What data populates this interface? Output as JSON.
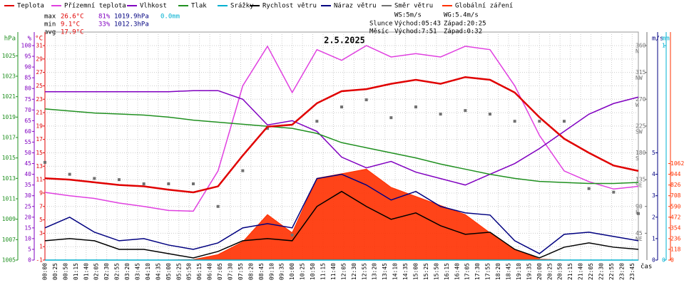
{
  "chart_data": {
    "type": "line",
    "title": "2.5.2025",
    "legend": [
      "Teplota",
      "Přízemní teplota",
      "Vlhkost",
      "Tlak",
      "Srážky",
      "Rychlost větru",
      "Náraz větru",
      "Směr větru",
      "Globální záření"
    ],
    "stats": [
      [
        "max",
        "26.6°C",
        "81%",
        "1019.9hPa",
        "0.0mm"
      ],
      [
        "min",
        "9.1°C",
        "33%",
        "1012.3hPa"
      ],
      [
        "avg",
        "17.9°C"
      ]
    ],
    "wind": [
      "WS:5m/s",
      "WG:5.4m/s"
    ],
    "sun": [
      "Slunce",
      "Východ:05:43",
      "Západ:20:25"
    ],
    "moon": [
      "Měsíc",
      "Východ:7:51",
      "Západ:0:32"
    ],
    "xlabel": "čas",
    "xlim": [
      0,
      1440
    ],
    "xticks": [
      {
        "value": 0,
        "label": "00:00"
      },
      {
        "value": 25,
        "label": "00:25"
      },
      {
        "value": 50,
        "label": "00:50"
      },
      {
        "value": 75,
        "label": "01:15"
      },
      {
        "value": 100,
        "label": "01:40"
      },
      {
        "value": 125,
        "label": "02:05"
      },
      {
        "value": 150,
        "label": "02:30"
      },
      {
        "value": 175,
        "label": "02:55"
      },
      {
        "value": 200,
        "label": "03:20"
      },
      {
        "value": 225,
        "label": "03:45"
      },
      {
        "value": 250,
        "label": "04:10"
      },
      {
        "value": 275,
        "label": "04:35"
      },
      {
        "value": 300,
        "label": "05:00"
      },
      {
        "value": 325,
        "label": "05:25"
      },
      {
        "value": 350,
        "label": "05:50"
      },
      {
        "value": 375,
        "label": "06:15"
      },
      {
        "value": 400,
        "label": "06:40"
      },
      {
        "value": 425,
        "label": "07:05"
      },
      {
        "value": 450,
        "label": "07:30"
      },
      {
        "value": 475,
        "label": "07:55"
      },
      {
        "value": 500,
        "label": "08:20"
      },
      {
        "value": 525,
        "label": "08:45"
      },
      {
        "value": 550,
        "label": "09:10"
      },
      {
        "value": 575,
        "label": "09:35"
      },
      {
        "value": 600,
        "label": "10:00"
      },
      {
        "value": 625,
        "label": "10:25"
      },
      {
        "value": 650,
        "label": "10:50"
      },
      {
        "value": 675,
        "label": "11:15"
      },
      {
        "value": 700,
        "label": "11:40"
      },
      {
        "value": 725,
        "label": "12:05"
      },
      {
        "value": 750,
        "label": "12:30"
      },
      {
        "value": 775,
        "label": "12:55"
      },
      {
        "value": 800,
        "label": "13:20"
      },
      {
        "value": 825,
        "label": "13:45"
      },
      {
        "value": 850,
        "label": "14:10"
      },
      {
        "value": 875,
        "label": "14:35"
      },
      {
        "value": 900,
        "label": "15:00"
      },
      {
        "value": 925,
        "label": "15:25"
      },
      {
        "value": 950,
        "label": "15:50"
      },
      {
        "value": 975,
        "label": "16:15"
      },
      {
        "value": 1000,
        "label": "16:40"
      },
      {
        "value": 1025,
        "label": "17:05"
      },
      {
        "value": 1050,
        "label": "17:30"
      },
      {
        "value": 1075,
        "label": "17:55"
      },
      {
        "value": 1100,
        "label": "18:20"
      },
      {
        "value": 1125,
        "label": "18:45"
      },
      {
        "value": 1150,
        "label": "19:10"
      },
      {
        "value": 1175,
        "label": "19:35"
      },
      {
        "value": 1200,
        "label": "20:00"
      },
      {
        "value": 1225,
        "label": "20:25"
      },
      {
        "value": 1250,
        "label": "20:50"
      },
      {
        "value": 1275,
        "label": "21:15"
      },
      {
        "value": 1300,
        "label": "21:40"
      },
      {
        "value": 1325,
        "label": "22:05"
      },
      {
        "value": 1350,
        "label": "22:30"
      },
      {
        "value": 1375,
        "label": "22:55"
      },
      {
        "value": 1400,
        "label": "23:20"
      },
      {
        "value": 1425,
        "label": "23:45"
      }
    ],
    "axes": [
      {
        "unit": "hPa",
        "color": "#209020",
        "ylim": [
          1005,
          1026
        ],
        "yticks": [
          1005,
          1007,
          1009,
          1011,
          1013,
          1015,
          1017,
          1019,
          1021,
          1023,
          1025
        ]
      },
      {
        "unit": "%",
        "color": "#8000c0",
        "ylim": [
          0,
          100
        ],
        "yticks": [
          0,
          5,
          10,
          15,
          20,
          25,
          30,
          35,
          40,
          45,
          50,
          55,
          60,
          65,
          70,
          75,
          80,
          85,
          90,
          95,
          100
        ]
      },
      {
        "unit": "°C",
        "color": "#e00000",
        "ylim": [
          -1,
          31
        ],
        "yticks": [
          -1,
          1,
          3,
          5,
          7,
          9,
          11,
          13,
          15,
          17,
          19,
          21,
          23,
          25,
          27,
          29,
          31
        ],
        "grid": true
      },
      {
        "color": "#707070",
        "ylim": [
          0,
          360
        ],
        "yticks": [
          45,
          90,
          135,
          180,
          225,
          270,
          315,
          360
        ],
        "compass": [
          "NE",
          "E",
          "SE",
          "S",
          "SW",
          "W",
          "NW",
          "N"
        ]
      },
      {
        "unit": "m/s",
        "color": "#000080",
        "ylim": [
          0,
          10
        ],
        "yticks": [
          0,
          1,
          2,
          3,
          4,
          5
        ]
      },
      {
        "unit": "mm",
        "color": "#00b0d0",
        "ylim": [
          0,
          1
        ],
        "yticks": [
          0,
          1
        ]
      },
      {
        "color": "#ff3000",
        "ylim": [
          0,
          2360
        ],
        "yticks": [
          0,
          118,
          236,
          354,
          472,
          590,
          708,
          826,
          944,
          1062
        ]
      }
    ],
    "x": [
      0,
      60,
      120,
      180,
      240,
      300,
      360,
      420,
      480,
      540,
      600,
      660,
      720,
      780,
      840,
      900,
      960,
      1020,
      1080,
      1140,
      1200,
      1260,
      1320,
      1380,
      1440
    ],
    "series": [
      {
        "name": "Globální záření",
        "color": "#ff3000",
        "axis": 6,
        "kind": "area",
        "values": [
          0,
          0,
          0,
          0,
          0,
          0,
          5,
          60,
          200,
          500,
          300,
          900,
          950,
          1000,
          800,
          700,
          600,
          500,
          300,
          120,
          10,
          0,
          0,
          0,
          0
        ]
      },
      {
        "name": "Přízemní teplota",
        "color": "#e040e0",
        "axis": 2,
        "values": [
          9.1,
          8.6,
          8.2,
          7.5,
          7.0,
          6.4,
          6.3,
          12.3,
          25.0,
          30.9,
          24.0,
          30.4,
          28.8,
          31.0,
          29.3,
          29.8,
          29.3,
          30.9,
          30.4,
          25.0,
          17.6,
          12.3,
          10.7,
          9.6,
          10.0
        ]
      },
      {
        "name": "Vlhkost",
        "color": "#8000c0",
        "axis": 1,
        "values": [
          78.5,
          78.5,
          78.5,
          78.5,
          78.5,
          78.5,
          79,
          79,
          75,
          63,
          65,
          60,
          48,
          43,
          46,
          41,
          38,
          35,
          40,
          45,
          52,
          60,
          68,
          73,
          76
        ]
      },
      {
        "name": "Tlak",
        "color": "#209020",
        "axis": 0,
        "values": [
          1019.8,
          1019.6,
          1019.4,
          1019.3,
          1019.2,
          1019.0,
          1018.7,
          1018.5,
          1018.3,
          1018.1,
          1017.9,
          1017.4,
          1016.5,
          1016.0,
          1015.5,
          1015.0,
          1014.4,
          1013.9,
          1013.4,
          1013.0,
          1012.7,
          1012.6,
          1012.5,
          1012.5,
          1012.6
        ]
      },
      {
        "name": "Srážky",
        "color": "#00b0d0",
        "axis": 5,
        "values": [
          0,
          0,
          0,
          0,
          0,
          0,
          0,
          0,
          0,
          0,
          0,
          0,
          0,
          0,
          0,
          0,
          0,
          0,
          0,
          0,
          0,
          0,
          0,
          0,
          0
        ]
      },
      {
        "name": "Rychlost větru",
        "color": "#000000",
        "axis": 4,
        "values": [
          0.9,
          1.0,
          0.9,
          0.5,
          0.5,
          0.3,
          0.1,
          0.4,
          0.9,
          1.0,
          0.9,
          2.5,
          3.2,
          2.5,
          1.9,
          2.2,
          1.6,
          1.2,
          1.3,
          0.5,
          0.1,
          0.6,
          0.8,
          0.6,
          0.5
        ]
      },
      {
        "name": "Náraz větru",
        "color": "#000080",
        "axis": 4,
        "values": [
          1.5,
          2.0,
          1.3,
          0.9,
          1.0,
          0.7,
          0.5,
          0.8,
          1.5,
          1.7,
          1.5,
          3.8,
          4.0,
          3.5,
          2.8,
          3.2,
          2.5,
          2.2,
          2.1,
          0.9,
          0.3,
          1.2,
          1.3,
          1.1,
          0.9
        ]
      },
      {
        "name": "Směr větru",
        "color": "#707070",
        "axis": 3,
        "kind": "points",
        "values": [
          164,
          144,
          137,
          135,
          128,
          128,
          128,
          90,
          150,
          221,
          42,
          233,
          257,
          269,
          239,
          257,
          245,
          251,
          245,
          233,
          233,
          233,
          120,
          114,
          78
        ]
      },
      {
        "name": "Teplota",
        "color": "#e00000",
        "axis": 2,
        "values": [
          11.2,
          11.0,
          10.6,
          10.2,
          10.0,
          9.5,
          9.1,
          10.0,
          14.6,
          18.9,
          19.2,
          22.4,
          24.2,
          24.5,
          25.3,
          25.9,
          25.3,
          26.3,
          25.9,
          24.0,
          20.3,
          17.1,
          15.0,
          13.1,
          12.3
        ]
      }
    ]
  }
}
